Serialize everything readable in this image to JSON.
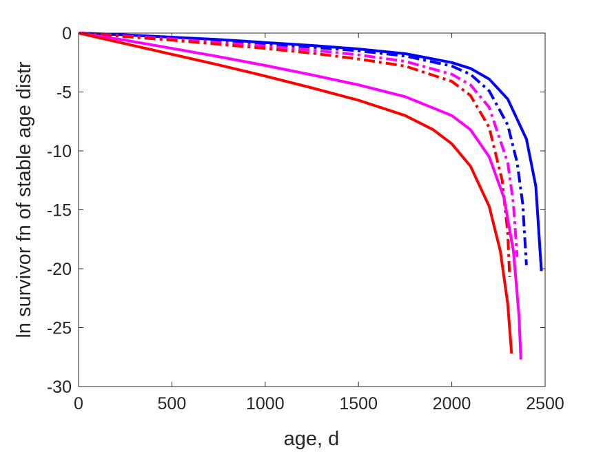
{
  "chart_data": {
    "type": "line",
    "title": "",
    "xlabel": "age, d",
    "ylabel": "ln survivor fn of stable age distr",
    "xlim": [
      0,
      2500
    ],
    "ylim": [
      -30,
      0
    ],
    "xticks": [
      "0",
      "500",
      "1000",
      "1500",
      "2000",
      "2500"
    ],
    "yticks": [
      "0",
      "-5",
      "-10",
      "-15",
      "-20",
      "-25",
      "-30"
    ],
    "grid": false,
    "legend": "none",
    "series": [
      {
        "color": "#0000ff",
        "style": "solid",
        "x": [
          0,
          250,
          500,
          750,
          1000,
          1250,
          1500,
          1750,
          2000,
          2100,
          2200,
          2300,
          2400,
          2450,
          2480
        ],
        "y": [
          0,
          -0.15,
          -0.35,
          -0.55,
          -0.8,
          -1.05,
          -1.35,
          -1.75,
          -2.5,
          -3.0,
          -3.9,
          -5.6,
          -9.0,
          -13.0,
          -20.2
        ]
      },
      {
        "color": "#0000ff",
        "style": "dashdot",
        "x": [
          0,
          250,
          500,
          750,
          1000,
          1250,
          1500,
          1750,
          2000,
          2100,
          2200,
          2300,
          2350,
          2380,
          2400
        ],
        "y": [
          0,
          -0.2,
          -0.4,
          -0.65,
          -0.9,
          -1.2,
          -1.5,
          -1.95,
          -2.8,
          -3.5,
          -4.9,
          -7.8,
          -11.0,
          -14.5,
          -19.7
        ]
      },
      {
        "color": "#ff00ff",
        "style": "dashdot",
        "x": [
          0,
          250,
          500,
          750,
          1000,
          1250,
          1500,
          1750,
          2000,
          2100,
          2200,
          2300,
          2330,
          2350
        ],
        "y": [
          0,
          -0.25,
          -0.5,
          -0.8,
          -1.1,
          -1.45,
          -1.85,
          -2.4,
          -3.5,
          -4.4,
          -6.3,
          -11.0,
          -14.5,
          -19.0
        ]
      },
      {
        "color": "#ff0000",
        "style": "dashdot",
        "x": [
          0,
          250,
          500,
          750,
          1000,
          1250,
          1500,
          1750,
          2000,
          2100,
          2200,
          2270,
          2300,
          2310
        ],
        "y": [
          0,
          -0.3,
          -0.6,
          -0.95,
          -1.3,
          -1.7,
          -2.2,
          -2.8,
          -4.1,
          -5.3,
          -8.0,
          -12.5,
          -17.0,
          -20.7
        ]
      },
      {
        "color": "#ff00ff",
        "style": "solid",
        "x": [
          0,
          250,
          500,
          750,
          1000,
          1250,
          1500,
          1750,
          2000,
          2100,
          2200,
          2280,
          2330,
          2360,
          2370
        ],
        "y": [
          0,
          -0.6,
          -1.3,
          -2.0,
          -2.75,
          -3.55,
          -4.4,
          -5.4,
          -7.0,
          -8.2,
          -10.5,
          -14.0,
          -18.5,
          -24.0,
          -27.7
        ]
      },
      {
        "color": "#ff0000",
        "style": "solid",
        "x": [
          0,
          250,
          500,
          750,
          1000,
          1250,
          1500,
          1750,
          1900,
          2000,
          2100,
          2200,
          2260,
          2300,
          2320
        ],
        "y": [
          0,
          -0.9,
          -1.8,
          -2.7,
          -3.65,
          -4.65,
          -5.7,
          -7.0,
          -8.2,
          -9.4,
          -11.3,
          -14.7,
          -18.5,
          -23.0,
          -27.2
        ]
      }
    ]
  }
}
